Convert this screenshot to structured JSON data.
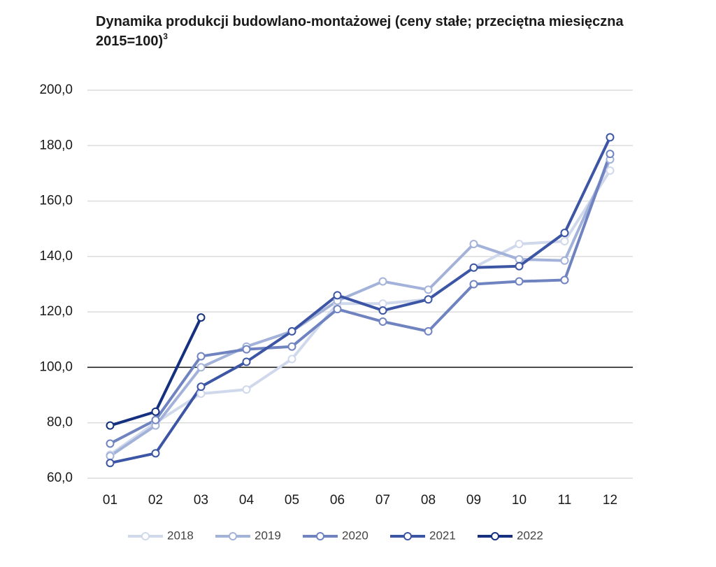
{
  "chart_data": {
    "type": "line",
    "title": "Dynamika produkcji budowlano-montażowej (ceny stałe; przeciętna miesięczna 2015=100)",
    "title_superscript": "3",
    "categories": [
      "01",
      "02",
      "03",
      "04",
      "05",
      "06",
      "07",
      "08",
      "09",
      "10",
      "11",
      "12"
    ],
    "series": [
      {
        "name": "2018",
        "color": "#d0d8ec",
        "values": [
          68.5,
          80,
          90.5,
          92,
          103,
          123,
          123,
          124.5,
          136,
          144.5,
          145.5,
          171
        ]
      },
      {
        "name": "2019",
        "color": "#a3b2d9",
        "values": [
          68,
          79,
          100,
          107.5,
          113,
          124,
          131,
          128,
          144.5,
          139,
          138.5,
          175
        ]
      },
      {
        "name": "2020",
        "color": "#6f83c0",
        "values": [
          72.5,
          81,
          104,
          106.5,
          107.5,
          121,
          116.5,
          113,
          130,
          131,
          131.5,
          177
        ]
      },
      {
        "name": "2021",
        "color": "#3c55a5",
        "values": [
          65.5,
          69,
          93,
          102,
          113,
          126,
          120.5,
          124.5,
          136,
          136.5,
          148.5,
          183
        ]
      },
      {
        "name": "2022",
        "color": "#14307f",
        "values": [
          79,
          84,
          118,
          null,
          null,
          null,
          null,
          null,
          null,
          null,
          null,
          null
        ]
      }
    ],
    "ylim": [
      60,
      200
    ],
    "yticks": [
      {
        "value": 60,
        "label": "60,0"
      },
      {
        "value": 80,
        "label": "80,0"
      },
      {
        "value": 100,
        "label": "100,0"
      },
      {
        "value": 120,
        "label": "120,0"
      },
      {
        "value": 140,
        "label": "140,0"
      },
      {
        "value": 160,
        "label": "160,0"
      },
      {
        "value": 180,
        "label": "180,0"
      },
      {
        "value": 200,
        "label": "200,0"
      }
    ],
    "reference_line": 100,
    "grid": true,
    "legend": "bottom"
  }
}
